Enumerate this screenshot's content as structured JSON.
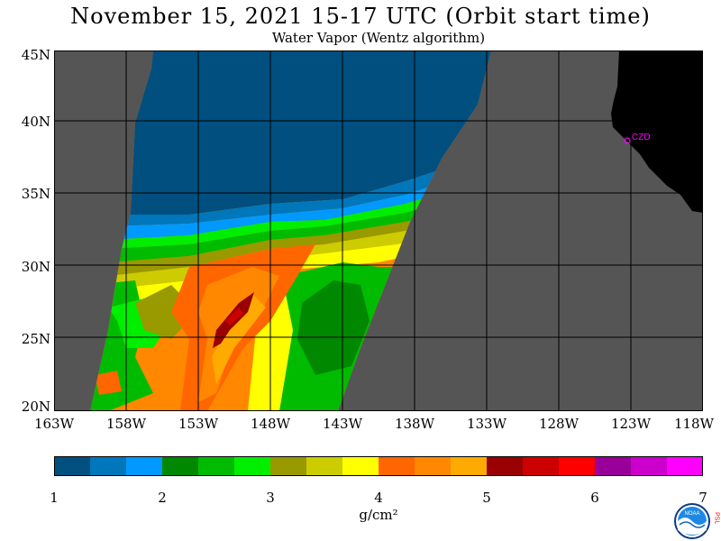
{
  "title": "November 15, 2021  15-17 UTC  (Orbit start time)",
  "subtitle": "Water Vapor (Wentz algorithm)",
  "map": {
    "lat_labels": [
      "45N",
      "40N",
      "35N",
      "30N",
      "25N",
      "20N"
    ],
    "lon_labels": [
      "163W",
      "158W",
      "153W",
      "148W",
      "143W",
      "138W",
      "133W",
      "128W",
      "123W",
      "118W"
    ],
    "station_label": "CZD",
    "colors": {
      "no_data": "#555555",
      "land": "#000000",
      "grid": "#000000",
      "station": "#ff00ff"
    }
  },
  "colorbar": {
    "colors": [
      "#004f7f",
      "#0077bb",
      "#0099ff",
      "#008800",
      "#00bb00",
      "#00ee00",
      "#999900",
      "#cccc00",
      "#ffff00",
      "#ff6600",
      "#ff8800",
      "#ffaa00",
      "#990000",
      "#cc0000",
      "#ff0000",
      "#990099",
      "#cc00cc",
      "#ff00ff"
    ],
    "tick_labels": [
      "1",
      "2",
      "3",
      "4",
      "5",
      "6",
      "7"
    ],
    "unit": "g/cm²"
  },
  "logo": {
    "name": "NOAA",
    "side_text": "PSL"
  }
}
